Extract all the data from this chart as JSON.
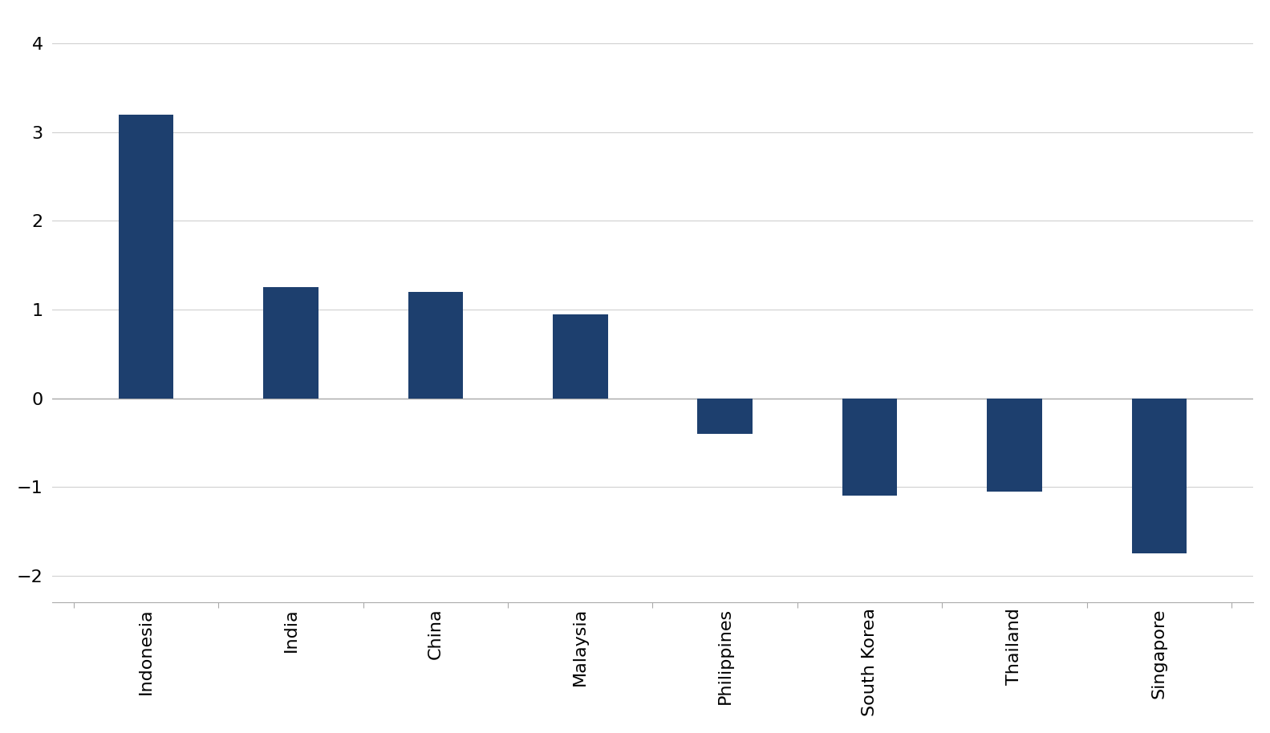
{
  "categories": [
    "Indonesia",
    "India",
    "China",
    "Malaysia",
    "Philippines",
    "South Korea",
    "Thailand",
    "Singapore"
  ],
  "values": [
    3.2,
    1.25,
    1.2,
    0.95,
    -0.4,
    -1.1,
    -1.05,
    -1.75
  ],
  "bar_color": "#1d3f6e",
  "ylim": [
    -2.3,
    4.3
  ],
  "yticks": [
    -2,
    -1,
    0,
    1,
    2,
    3,
    4
  ],
  "background_color": "#ffffff",
  "grid_color": "#d0d0d0",
  "bar_width": 0.38,
  "tick_fontsize": 16,
  "label_fontsize": 16
}
